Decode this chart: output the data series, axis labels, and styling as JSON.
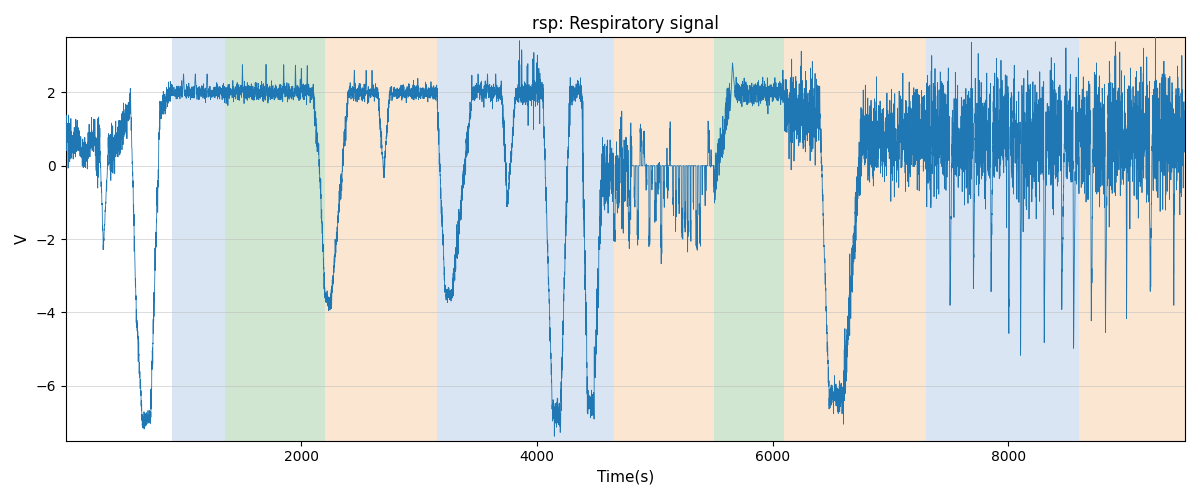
{
  "title": "rsp: Respiratory signal",
  "xlabel": "Time(s)",
  "ylabel": "V",
  "xlim": [
    0,
    9500
  ],
  "ylim": [
    -7.5,
    3.5
  ],
  "yticks": [
    2,
    0,
    -2,
    -4,
    -6
  ],
  "xticks": [
    2000,
    4000,
    6000,
    8000
  ],
  "line_color": "#1f77b4",
  "line_width": 0.6,
  "background_color": "#ffffff",
  "grid_color": "#bbbbbb",
  "regions": [
    {
      "start": 900,
      "end": 1350,
      "color": "#aec6e8",
      "alpha": 0.45
    },
    {
      "start": 1350,
      "end": 2200,
      "color": "#98c898",
      "alpha": 0.45
    },
    {
      "start": 2200,
      "end": 3150,
      "color": "#f5c89a",
      "alpha": 0.45
    },
    {
      "start": 3150,
      "end": 4650,
      "color": "#aec6e8",
      "alpha": 0.45
    },
    {
      "start": 4650,
      "end": 5500,
      "color": "#f5c89a",
      "alpha": 0.45
    },
    {
      "start": 5500,
      "end": 6100,
      "color": "#98c898",
      "alpha": 0.45
    },
    {
      "start": 6100,
      "end": 7300,
      "color": "#f5c89a",
      "alpha": 0.45
    },
    {
      "start": 7300,
      "end": 8600,
      "color": "#aec6e8",
      "alpha": 0.45
    },
    {
      "start": 8600,
      "end": 9500,
      "color": "#f5c89a",
      "alpha": 0.45
    }
  ]
}
